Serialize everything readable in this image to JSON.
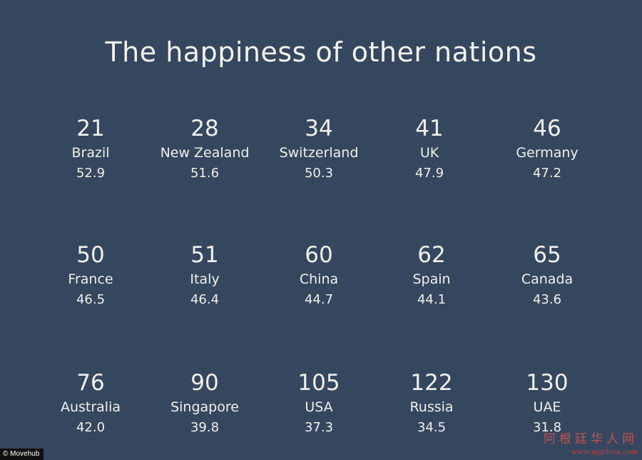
{
  "title": "The happiness of other nations",
  "credit": "© Movehub",
  "watermark": {
    "text": "阿根廷华人网",
    "url": "www.argchina.com"
  },
  "nations": [
    {
      "rank": "21",
      "country": "Brazil",
      "score": "52.9"
    },
    {
      "rank": "28",
      "country": "New Zealand",
      "score": "51.6"
    },
    {
      "rank": "34",
      "country": "Switzerland",
      "score": "50.3"
    },
    {
      "rank": "41",
      "country": "UK",
      "score": "47.9"
    },
    {
      "rank": "46",
      "country": "Germany",
      "score": "47.2"
    },
    {
      "rank": "50",
      "country": "France",
      "score": "46.5"
    },
    {
      "rank": "51",
      "country": "Italy",
      "score": "46.4"
    },
    {
      "rank": "60",
      "country": "China",
      "score": "44.7"
    },
    {
      "rank": "62",
      "country": "Spain",
      "score": "44.1"
    },
    {
      "rank": "65",
      "country": "Canada",
      "score": "43.6"
    },
    {
      "rank": "76",
      "country": "Australia",
      "score": "42.0"
    },
    {
      "rank": "90",
      "country": "Singapore",
      "score": "39.8"
    },
    {
      "rank": "105",
      "country": "USA",
      "score": "37.3"
    },
    {
      "rank": "122",
      "country": "Russia",
      "score": "34.5"
    },
    {
      "rank": "130",
      "country": "UAE",
      "score": "31.8"
    }
  ],
  "colors": {
    "background": "#35475f",
    "text": "#f1efe9",
    "watermark": "#d43b36"
  }
}
